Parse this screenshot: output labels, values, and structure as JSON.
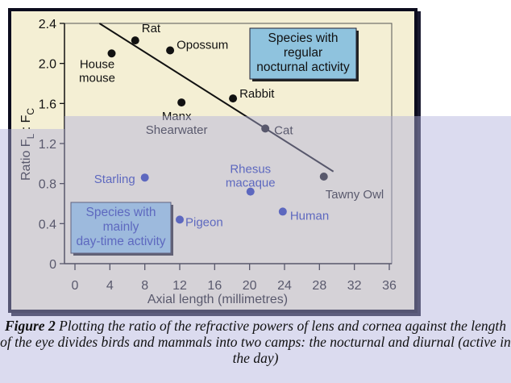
{
  "chart_data": {
    "type": "scatter",
    "xlabel": "Axial length (millimetres)",
    "ylabel": "Ratio F_L : F_C",
    "xlim": [
      0,
      36
    ],
    "ylim": [
      0,
      2.4
    ],
    "xticks": [
      "0",
      "4",
      "8",
      "12",
      "16",
      "20",
      "24",
      "28",
      "32",
      "36"
    ],
    "yticks": [
      "0",
      "0.4",
      "0.8",
      "1.2",
      "1.6",
      "2.0",
      "2.4"
    ],
    "grid": false,
    "colors": {
      "nocturnal": "#111111",
      "diurnal": "#1a2ea8",
      "box_fill": "#8fc3de",
      "background": "#f4efd4"
    },
    "series": [
      {
        "group": "nocturnal",
        "points": [
          {
            "label": [
              "House",
              "mouse"
            ],
            "x": 4.2,
            "y": 2.1
          },
          {
            "label": [
              "Rat"
            ],
            "x": 6.9,
            "y": 2.23
          },
          {
            "label": [
              "Opossum"
            ],
            "x": 10.9,
            "y": 2.13
          },
          {
            "label": [
              "Manx",
              "Shearwater"
            ],
            "x": 12.2,
            "y": 1.61
          },
          {
            "label": [
              "Rabbit"
            ],
            "x": 18.1,
            "y": 1.65
          },
          {
            "label": [
              "Cat"
            ],
            "x": 21.8,
            "y": 1.35
          },
          {
            "label": [
              "Tawny Owl"
            ],
            "x": 28.5,
            "y": 0.87
          }
        ]
      },
      {
        "group": "diurnal",
        "points": [
          {
            "label": [
              "Starling"
            ],
            "x": 8.0,
            "y": 0.86
          },
          {
            "label": [
              "Rhesus",
              "macaque"
            ],
            "x": 20.1,
            "y": 0.72
          },
          {
            "label": [
              "Pigeon"
            ],
            "x": 12.0,
            "y": 0.44
          },
          {
            "label": [
              "Human"
            ],
            "x": 23.8,
            "y": 0.52
          }
        ]
      }
    ],
    "trend_line": {
      "from": [
        2.8,
        2.4
      ],
      "to": [
        29.6,
        0.92
      ]
    },
    "annotations": [
      {
        "lines": [
          "Species with",
          "regular",
          "nocturnal activity"
        ]
      },
      {
        "lines": [
          "Species with",
          "mainly",
          "day-time activity"
        ]
      }
    ]
  },
  "caption": {
    "label": "Figure 2",
    "text": " Plotting the ratio of the refractive powers of lens and cornea against the length of the eye divides birds and mammals into two camps: the nocturnal and diurnal (active in the day)"
  }
}
